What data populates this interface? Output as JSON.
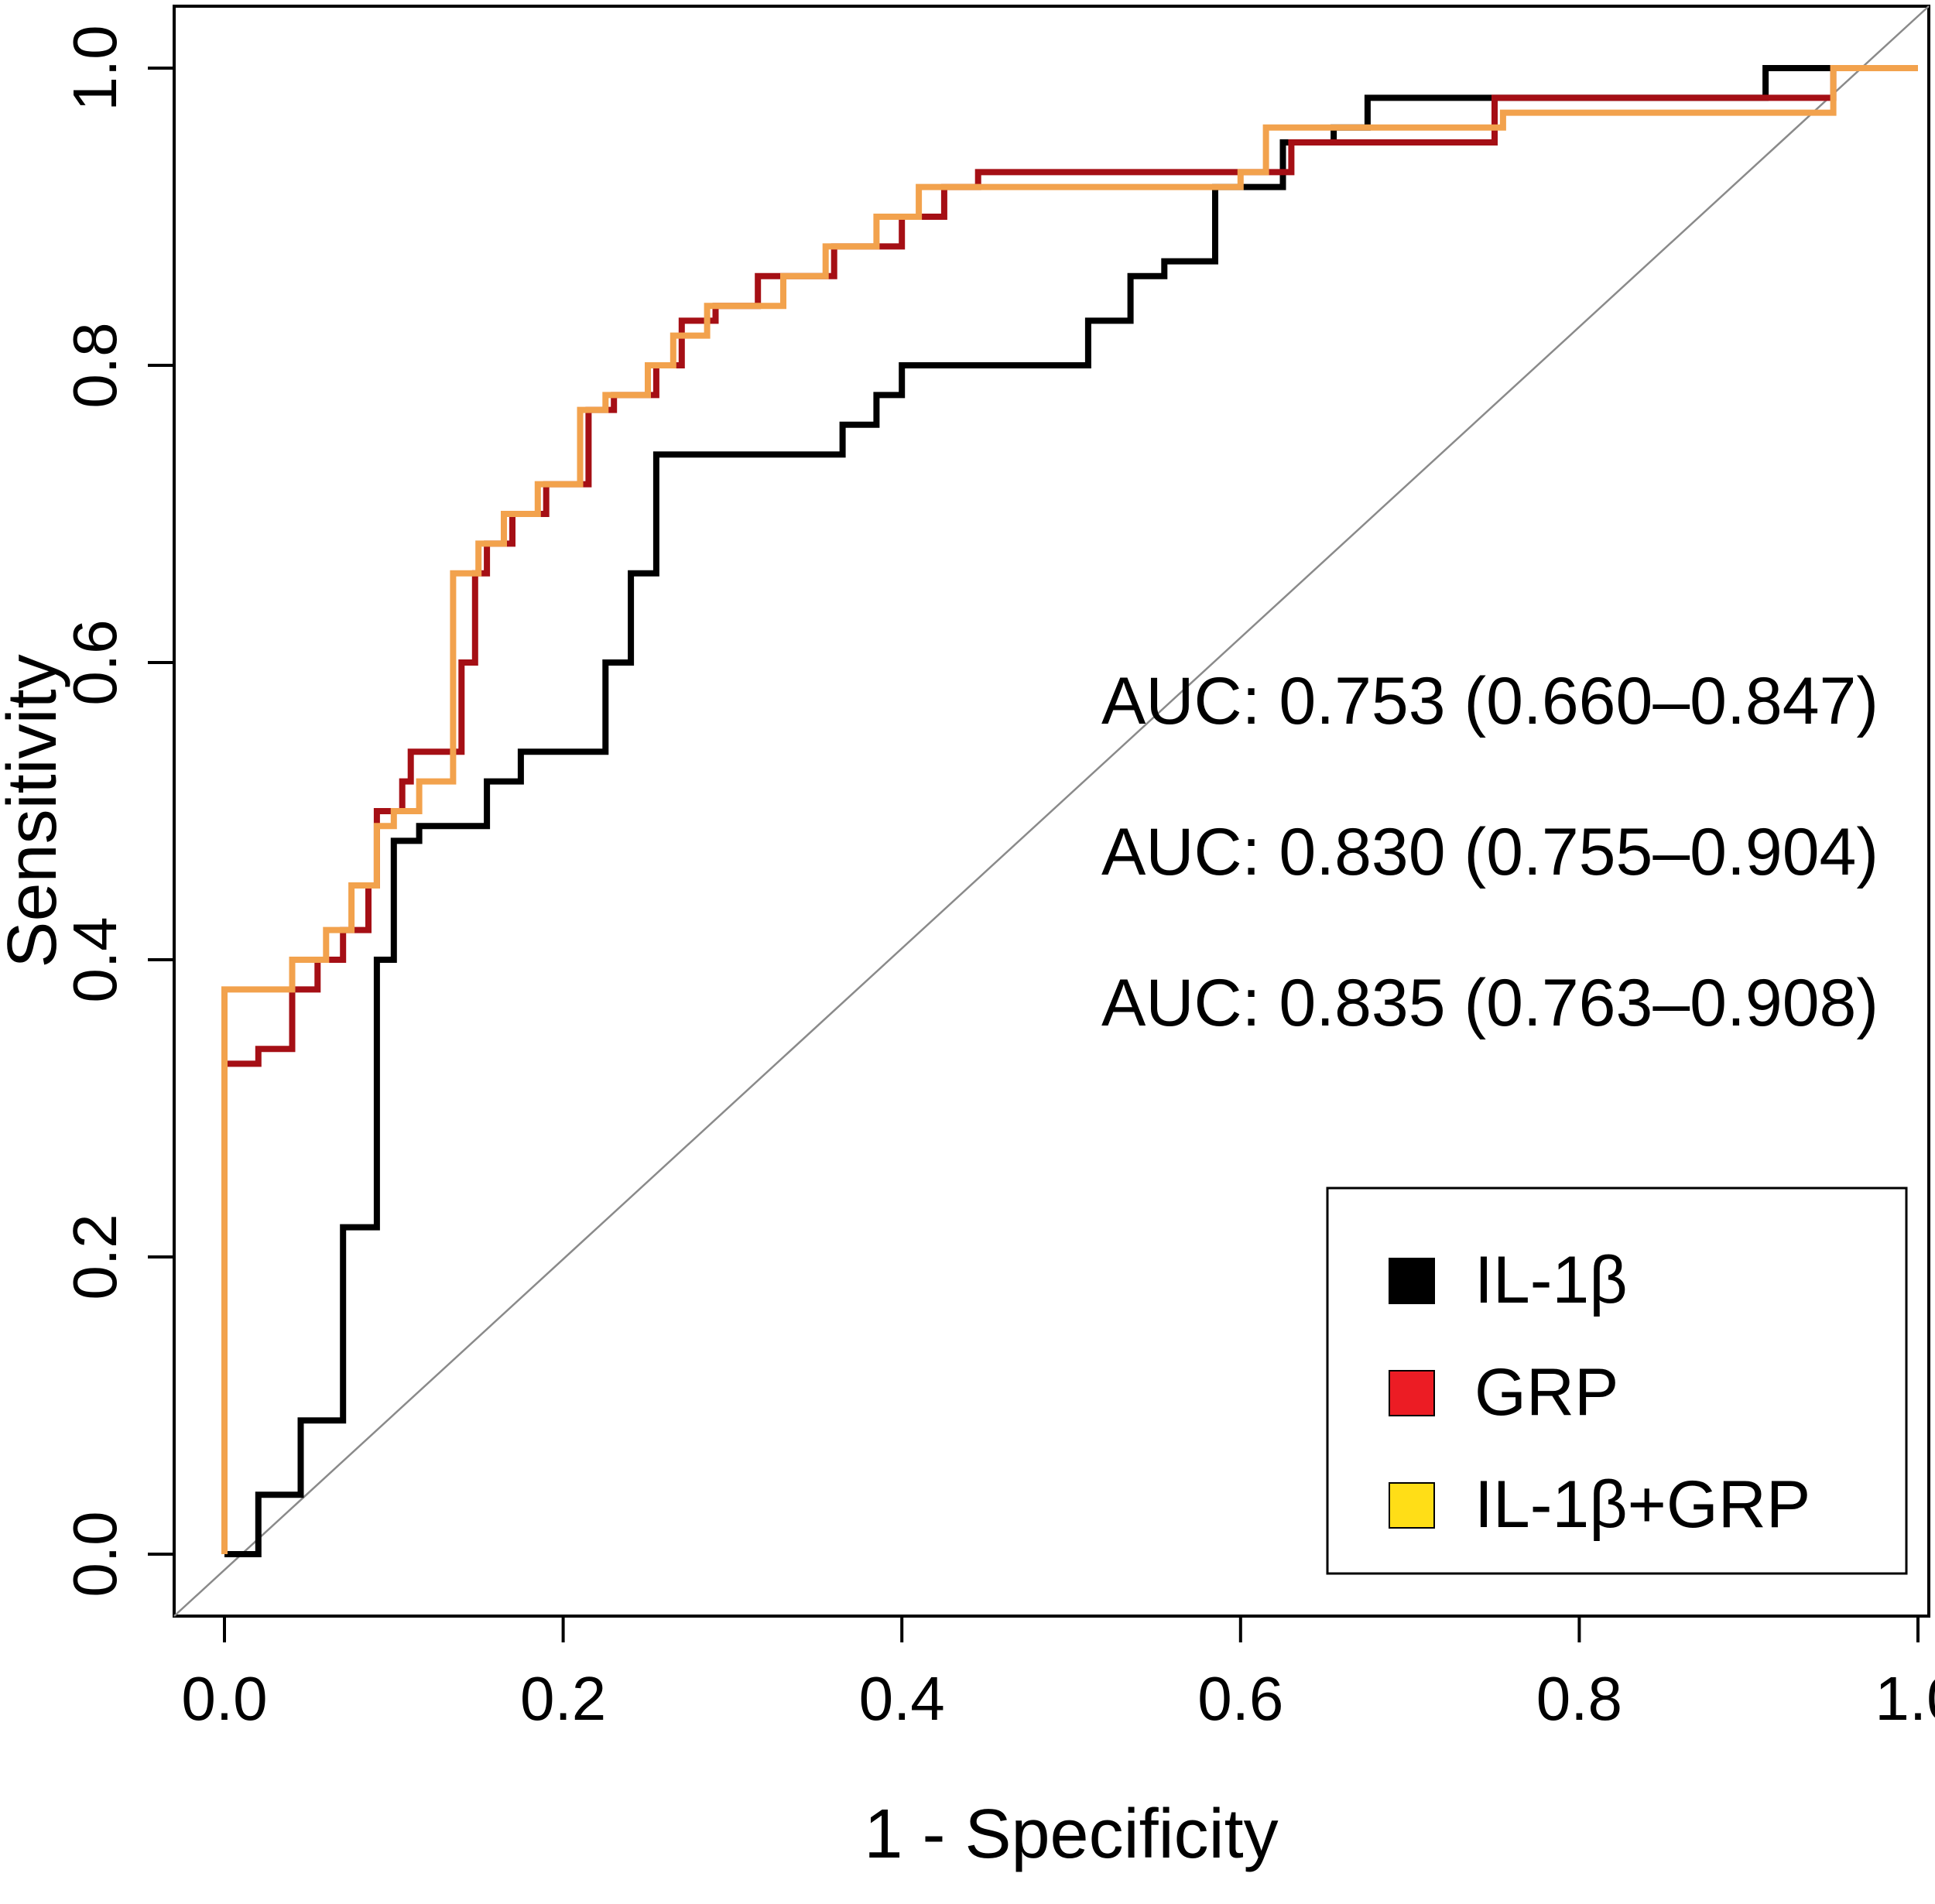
{
  "figure": {
    "background": "#ffffff",
    "frame_color": "#000000",
    "reference_line_color": "#8a8a8a"
  },
  "chart_data": {
    "type": "line",
    "subtype": "roc-step-curves",
    "title": "",
    "xlabel": "1 - Specificity",
    "ylabel": "Sensitivity",
    "xlim": [
      0,
      1
    ],
    "ylim": [
      0,
      1
    ],
    "grid": false,
    "diagonal_reference_line": true,
    "x_ticks": [
      "0.0",
      "0.2",
      "0.4",
      "0.6",
      "0.8",
      "1.0"
    ],
    "y_ticks": [
      "0.0",
      "0.2",
      "0.4",
      "0.6",
      "0.8",
      "1.0"
    ],
    "series": [
      {
        "name": "IL-1β",
        "color": "#000000",
        "auc": 0.753,
        "ci_low": 0.66,
        "ci_high": 0.847,
        "points": [
          [
            0.0,
            0.0
          ],
          [
            0.02,
            0.0
          ],
          [
            0.02,
            0.04
          ],
          [
            0.045,
            0.04
          ],
          [
            0.045,
            0.09
          ],
          [
            0.07,
            0.09
          ],
          [
            0.07,
            0.22
          ],
          [
            0.09,
            0.22
          ],
          [
            0.09,
            0.4
          ],
          [
            0.1,
            0.4
          ],
          [
            0.1,
            0.48
          ],
          [
            0.115,
            0.48
          ],
          [
            0.115,
            0.49
          ],
          [
            0.155,
            0.49
          ],
          [
            0.155,
            0.52
          ],
          [
            0.175,
            0.52
          ],
          [
            0.175,
            0.54
          ],
          [
            0.225,
            0.54
          ],
          [
            0.225,
            0.6
          ],
          [
            0.24,
            0.6
          ],
          [
            0.24,
            0.66
          ],
          [
            0.255,
            0.66
          ],
          [
            0.255,
            0.74
          ],
          [
            0.365,
            0.74
          ],
          [
            0.365,
            0.76
          ],
          [
            0.385,
            0.76
          ],
          [
            0.385,
            0.78
          ],
          [
            0.4,
            0.78
          ],
          [
            0.4,
            0.8
          ],
          [
            0.51,
            0.8
          ],
          [
            0.51,
            0.83
          ],
          [
            0.535,
            0.83
          ],
          [
            0.535,
            0.86
          ],
          [
            0.555,
            0.86
          ],
          [
            0.555,
            0.87
          ],
          [
            0.585,
            0.87
          ],
          [
            0.585,
            0.92
          ],
          [
            0.625,
            0.92
          ],
          [
            0.625,
            0.95
          ],
          [
            0.655,
            0.95
          ],
          [
            0.655,
            0.96
          ],
          [
            0.675,
            0.96
          ],
          [
            0.675,
            0.98
          ],
          [
            0.91,
            0.98
          ],
          [
            0.91,
            1.0
          ],
          [
            1.0,
            1.0
          ]
        ]
      },
      {
        "name": "GRP",
        "color": "#a50f15",
        "auc": 0.83,
        "ci_low": 0.755,
        "ci_high": 0.904,
        "points": [
          [
            0.0,
            0.33
          ],
          [
            0.02,
            0.33
          ],
          [
            0.02,
            0.34
          ],
          [
            0.04,
            0.34
          ],
          [
            0.04,
            0.38
          ],
          [
            0.055,
            0.38
          ],
          [
            0.055,
            0.4
          ],
          [
            0.07,
            0.4
          ],
          [
            0.07,
            0.42
          ],
          [
            0.085,
            0.42
          ],
          [
            0.085,
            0.45
          ],
          [
            0.09,
            0.45
          ],
          [
            0.09,
            0.5
          ],
          [
            0.105,
            0.5
          ],
          [
            0.105,
            0.52
          ],
          [
            0.11,
            0.52
          ],
          [
            0.11,
            0.54
          ],
          [
            0.14,
            0.54
          ],
          [
            0.14,
            0.6
          ],
          [
            0.148,
            0.6
          ],
          [
            0.148,
            0.66
          ],
          [
            0.155,
            0.66
          ],
          [
            0.155,
            0.68
          ],
          [
            0.17,
            0.68
          ],
          [
            0.17,
            0.7
          ],
          [
            0.19,
            0.7
          ],
          [
            0.19,
            0.72
          ],
          [
            0.215,
            0.72
          ],
          [
            0.215,
            0.77
          ],
          [
            0.23,
            0.77
          ],
          [
            0.23,
            0.78
          ],
          [
            0.255,
            0.78
          ],
          [
            0.255,
            0.8
          ],
          [
            0.27,
            0.8
          ],
          [
            0.27,
            0.83
          ],
          [
            0.29,
            0.83
          ],
          [
            0.29,
            0.84
          ],
          [
            0.315,
            0.84
          ],
          [
            0.315,
            0.86
          ],
          [
            0.36,
            0.86
          ],
          [
            0.36,
            0.88
          ],
          [
            0.4,
            0.88
          ],
          [
            0.4,
            0.9
          ],
          [
            0.425,
            0.9
          ],
          [
            0.425,
            0.92
          ],
          [
            0.445,
            0.92
          ],
          [
            0.445,
            0.93
          ],
          [
            0.63,
            0.93
          ],
          [
            0.63,
            0.95
          ],
          [
            0.75,
            0.95
          ],
          [
            0.75,
            0.98
          ],
          [
            0.95,
            0.98
          ],
          [
            0.95,
            1.0
          ],
          [
            1.0,
            1.0
          ]
        ]
      },
      {
        "name": "IL-1β+GRP",
        "color": "#F2A24D",
        "auc": 0.835,
        "ci_low": 0.763,
        "ci_high": 0.908,
        "points": [
          [
            0.0,
            0.0
          ],
          [
            0.0,
            0.38
          ],
          [
            0.04,
            0.38
          ],
          [
            0.04,
            0.4
          ],
          [
            0.06,
            0.4
          ],
          [
            0.06,
            0.42
          ],
          [
            0.075,
            0.42
          ],
          [
            0.075,
            0.45
          ],
          [
            0.09,
            0.45
          ],
          [
            0.09,
            0.49
          ],
          [
            0.1,
            0.49
          ],
          [
            0.1,
            0.5
          ],
          [
            0.115,
            0.5
          ],
          [
            0.115,
            0.52
          ],
          [
            0.135,
            0.52
          ],
          [
            0.135,
            0.66
          ],
          [
            0.15,
            0.66
          ],
          [
            0.15,
            0.68
          ],
          [
            0.165,
            0.68
          ],
          [
            0.165,
            0.7
          ],
          [
            0.185,
            0.7
          ],
          [
            0.185,
            0.72
          ],
          [
            0.21,
            0.72
          ],
          [
            0.21,
            0.77
          ],
          [
            0.225,
            0.77
          ],
          [
            0.225,
            0.78
          ],
          [
            0.25,
            0.78
          ],
          [
            0.25,
            0.8
          ],
          [
            0.265,
            0.8
          ],
          [
            0.265,
            0.82
          ],
          [
            0.285,
            0.82
          ],
          [
            0.285,
            0.84
          ],
          [
            0.33,
            0.84
          ],
          [
            0.33,
            0.86
          ],
          [
            0.355,
            0.86
          ],
          [
            0.355,
            0.88
          ],
          [
            0.385,
            0.88
          ],
          [
            0.385,
            0.9
          ],
          [
            0.41,
            0.9
          ],
          [
            0.41,
            0.92
          ],
          [
            0.6,
            0.92
          ],
          [
            0.6,
            0.93
          ],
          [
            0.615,
            0.93
          ],
          [
            0.615,
            0.96
          ],
          [
            0.755,
            0.96
          ],
          [
            0.755,
            0.97
          ],
          [
            0.95,
            0.97
          ],
          [
            0.95,
            1.0
          ],
          [
            1.0,
            1.0
          ]
        ]
      }
    ],
    "annotations": [
      {
        "text": "AUC: 0.753 (0.660–0.847)",
        "color": "#000000"
      },
      {
        "text": "AUC: 0.830 (0.755–0.904)",
        "color": "#a50f15"
      },
      {
        "text": "AUC: 0.835 (0.763–0.908)",
        "color": "#F2A24D"
      }
    ],
    "legend": {
      "position": "bottom-right",
      "items": [
        {
          "label": "IL-1β",
          "swatch_color": "#000000"
        },
        {
          "label": "GRP",
          "swatch_color": "#EC1C24"
        },
        {
          "label": "IL-1β+GRP",
          "swatch_color": "#FFDE17"
        }
      ]
    }
  }
}
